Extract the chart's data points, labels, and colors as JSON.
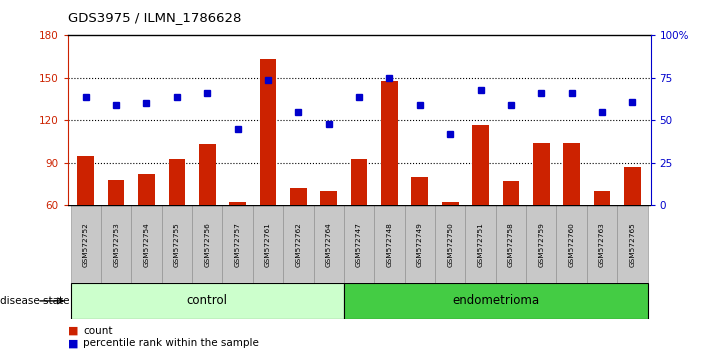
{
  "title": "GDS3975 / ILMN_1786628",
  "samples": [
    "GSM572752",
    "GSM572753",
    "GSM572754",
    "GSM572755",
    "GSM572756",
    "GSM572757",
    "GSM572761",
    "GSM572762",
    "GSM572764",
    "GSM572747",
    "GSM572748",
    "GSM572749",
    "GSM572750",
    "GSM572751",
    "GSM572758",
    "GSM572759",
    "GSM572760",
    "GSM572763",
    "GSM572765"
  ],
  "counts": [
    95,
    78,
    82,
    93,
    103,
    62,
    163,
    72,
    70,
    93,
    148,
    80,
    62,
    117,
    77,
    104,
    104,
    70,
    87
  ],
  "percentiles": [
    64,
    59,
    60,
    64,
    66,
    45,
    74,
    55,
    48,
    64,
    75,
    59,
    42,
    68,
    59,
    66,
    66,
    55,
    61
  ],
  "group_labels": [
    "control",
    "endometrioma"
  ],
  "control_count": 9,
  "endometrioma_count": 10,
  "ylim_left": [
    60,
    180
  ],
  "ylim_right": [
    0,
    100
  ],
  "yticks_left": [
    60,
    90,
    120,
    150,
    180
  ],
  "yticks_right": [
    0,
    25,
    50,
    75,
    100
  ],
  "ytick_right_labels": [
    "0",
    "25",
    "50",
    "75",
    "100%"
  ],
  "bar_color": "#cc2200",
  "dot_color": "#0000cc",
  "grid_color": "#000000",
  "bg_color": "#ffffff",
  "tick_bg": "#c8c8c8",
  "control_bg": "#ccffcc",
  "endometrioma_bg": "#44cc44",
  "left_axis_color": "#cc2200",
  "right_axis_color": "#0000cc",
  "legend_count_label": "count",
  "legend_percentile_label": "percentile rank within the sample",
  "disease_state_label": "disease state",
  "bar_width": 0.55
}
